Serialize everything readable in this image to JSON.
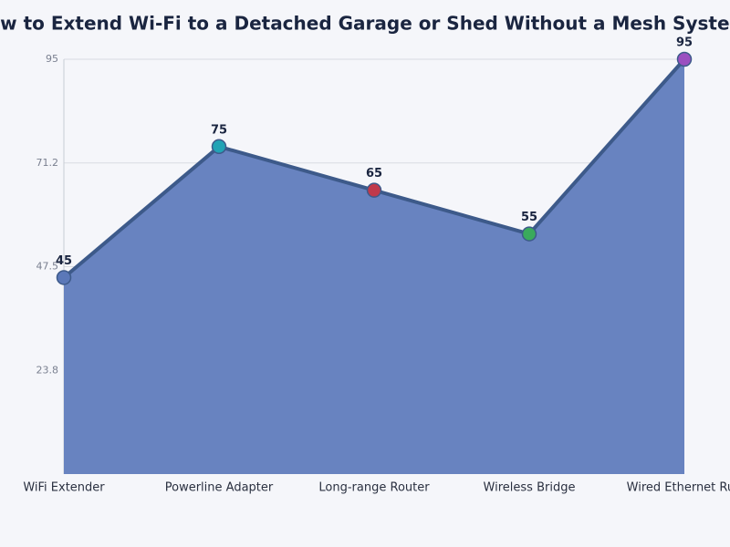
{
  "chart_data": {
    "type": "area",
    "title": "How to Extend Wi-Fi to a Detached Garage or Shed Without a Mesh System",
    "categories": [
      "WiFi Extender",
      "Powerline Adapter",
      "Long-range Router",
      "Wireless Bridge",
      "Wired Ethernet Run"
    ],
    "values": [
      45,
      75,
      65,
      55,
      95
    ],
    "color": "#3d5a8a",
    "fill_color": "#6883c0",
    "point_colors": [
      "#5b78b8",
      "#22a3b5",
      "#c0394b",
      "#3aaa5c",
      "#9b4fc0"
    ],
    "ylim": [
      0,
      95
    ],
    "yticks": [
      {
        "value": 23.75,
        "label": "23.8"
      },
      47.5,
      {
        "value": 71.25,
        "label": "71.2"
      },
      95
    ],
    "grid": true
  }
}
